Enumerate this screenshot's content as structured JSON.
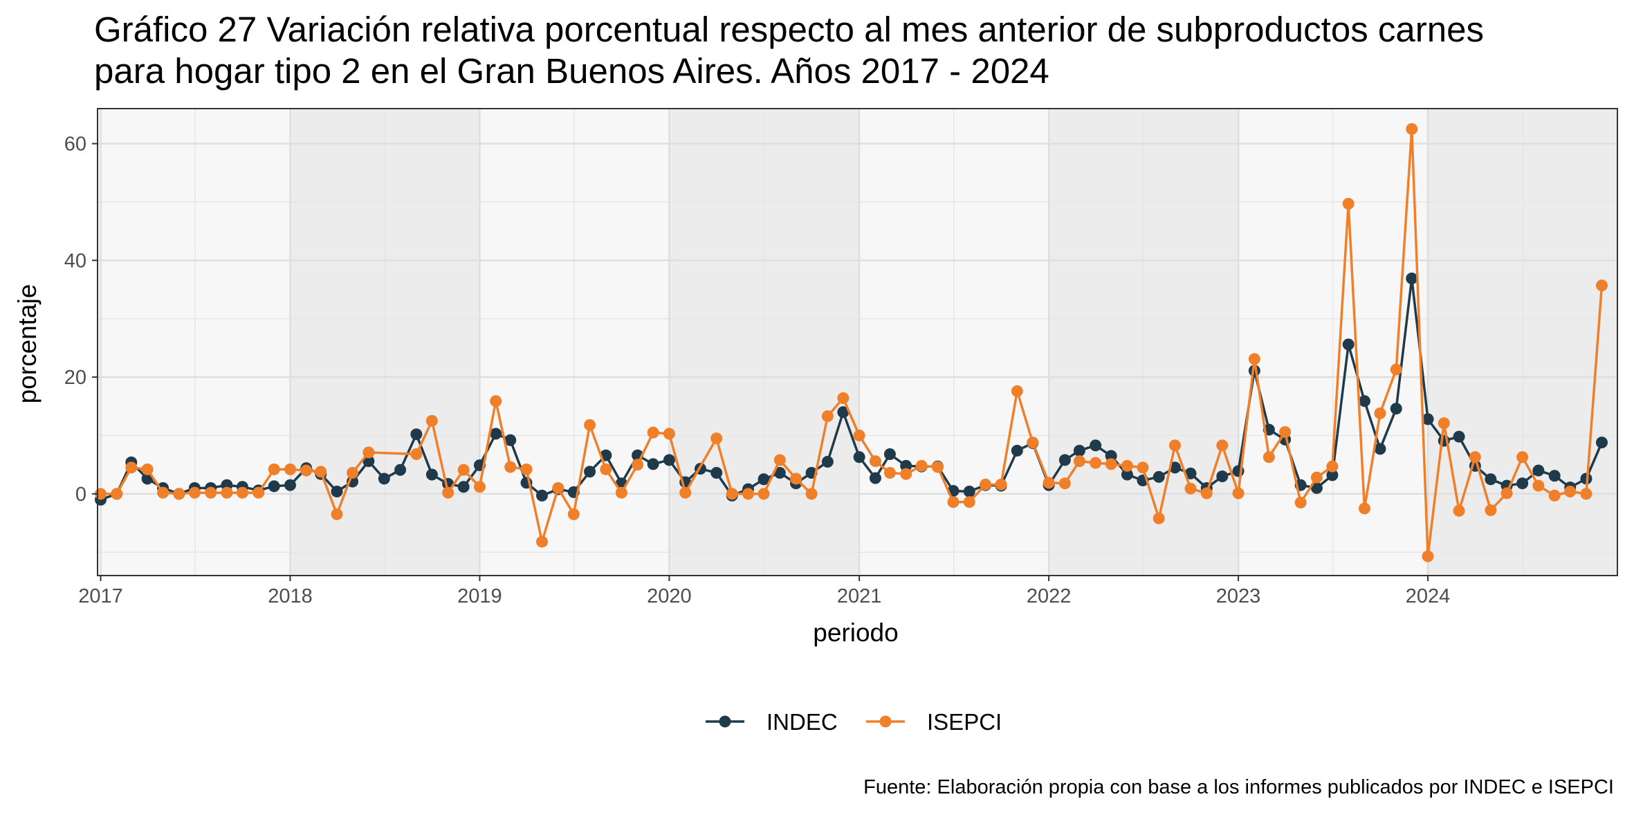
{
  "chart_data": {
    "type": "line",
    "title_lines": [
      "Gráfico 27 Variación relativa porcentual respecto al mes anterior de subproductos carnes",
      "para hogar tipo 2 en el Gran Buenos Aires. Años 2017 - 2024"
    ],
    "xlabel": "periodo",
    "ylabel": "porcentaje",
    "caption": "Fuente: Elaboración propia con base a los informes publicados por INDEC e ISEPCI",
    "x_ticks": [
      "2017",
      "2018",
      "2019",
      "2020",
      "2021",
      "2022",
      "2023",
      "2024"
    ],
    "y_ticks": [
      0,
      20,
      40,
      60
    ],
    "ylim": [
      -14,
      66
    ],
    "x_range": [
      "2016-12-26",
      "2024-12-31"
    ],
    "x_start": "2017-01",
    "grid": true,
    "legend_position": "bottom",
    "series": [
      {
        "name": "INDEC",
        "color": "#1f3a4b",
        "values": [
          -1,
          0,
          5.4,
          2.6,
          1,
          0,
          1,
          1,
          1.5,
          1.2,
          0.6,
          1.3,
          1.5,
          4.4,
          3.4,
          0.4,
          2.1,
          5.6,
          2.6,
          4.1,
          10.2,
          3.3,
          1.7,
          1.2,
          4.9,
          10.3,
          9.2,
          1.9,
          -0.3,
          0.8,
          0.3,
          3.8,
          6.6,
          1.8,
          6.6,
          5.1,
          5.8,
          2,
          4.3,
          3.6,
          -0.3,
          0.8,
          2.5,
          3.6,
          1.8,
          3.6,
          5.5,
          14,
          6.3,
          2.7,
          6.8,
          4.8,
          4.7,
          4.7,
          0.5,
          0.4,
          1.5,
          1.4,
          7.4,
          8.7,
          1.5,
          5.8,
          7.4,
          8.3,
          6.5,
          3.3,
          2.3,
          2.9,
          4.5,
          3.5,
          1,
          3,
          3.9,
          21.1,
          11,
          9.3,
          1.5,
          1,
          3.2,
          25.6,
          15.9,
          7.7,
          14.6,
          36.9,
          12.8,
          9.1,
          9.8,
          4.8,
          2.5,
          1.4,
          1.8,
          4,
          3.1,
          1.1,
          2.6,
          8.8
        ]
      },
      {
        "name": "ISEPCI",
        "color": "#f07f2a",
        "values": [
          0,
          0,
          4.5,
          4.2,
          0.2,
          0,
          0.2,
          0.2,
          0.2,
          0.2,
          0.2,
          4.2,
          4.2,
          4,
          3.8,
          -3.5,
          3.6,
          7.1,
          null,
          null,
          6.8,
          12.5,
          0.2,
          4.1,
          1.2,
          15.9,
          4.6,
          4.2,
          -8.2,
          1,
          -3.5,
          11.8,
          4.2,
          0.2,
          5,
          10.5,
          10.3,
          0.2,
          null,
          9.5,
          0,
          0,
          0,
          5.8,
          2.6,
          0,
          13.3,
          16.4,
          10,
          5.6,
          3.6,
          3.4,
          4.8,
          4.6,
          -1.4,
          -1.4,
          1.6,
          1.6,
          17.6,
          8.8,
          1.9,
          1.8,
          5.6,
          5.3,
          5.1,
          4.8,
          4.5,
          -4.2,
          8.3,
          0.9,
          0.1,
          8.3,
          0.1,
          23.1,
          6.3,
          10.6,
          -1.5,
          2.8,
          4.7,
          49.7,
          -2.5,
          13.8,
          21.3,
          62.5,
          -10.7,
          12.1,
          -2.9,
          6.3,
          -2.8,
          0.1,
          6.3,
          1.4,
          -0.3,
          0.4,
          0,
          35.7
        ]
      }
    ]
  }
}
